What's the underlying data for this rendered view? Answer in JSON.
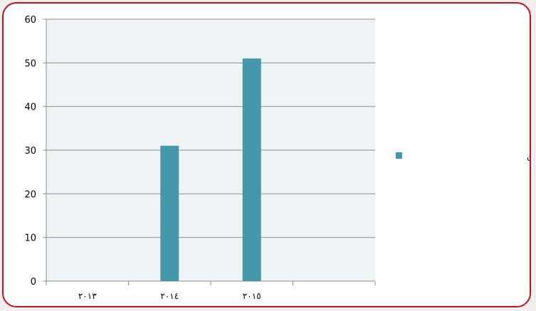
{
  "chart_data": {
    "type": "bar",
    "categories": [
      "٢٠١٣",
      "٢٠١٤",
      "٢٠١٥",
      ""
    ],
    "series": [
      {
        "name": "عدد القروض المقدمة للعاطلين",
        "values": [
          0,
          31,
          51,
          0
        ],
        "color": "#4797ab"
      }
    ],
    "ylim": [
      0,
      60
    ],
    "yticks": [
      0,
      10,
      20,
      30,
      40,
      50,
      60
    ],
    "grid": true,
    "legend_position": "right",
    "plot_background": "#eef3f6",
    "frame_color": "#c4121c",
    "title": "",
    "xlabel": "",
    "ylabel": ""
  }
}
